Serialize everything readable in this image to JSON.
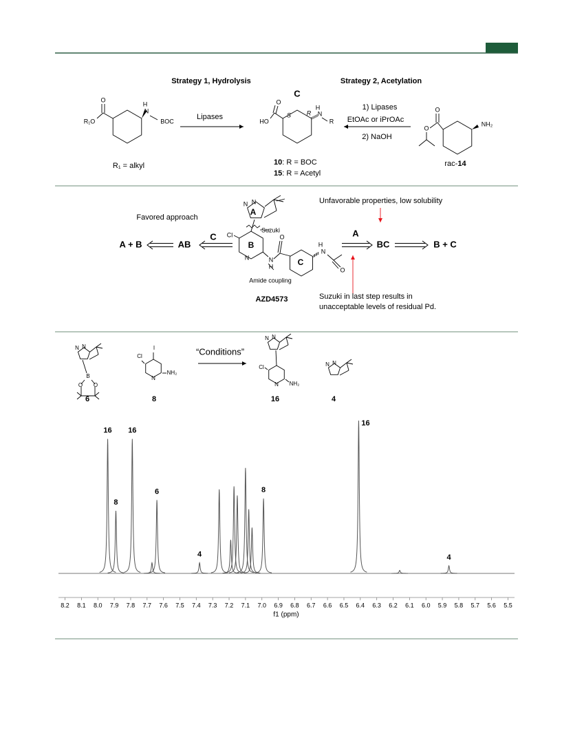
{
  "scheme1": {
    "headings": [
      "Strategy 1, Hydrolysis",
      "Strategy 2, Acetylation"
    ],
    "ring_label": "C",
    "left": {
      "atoms": [
        "O",
        "R₁O",
        "H",
        "N",
        "BOC"
      ],
      "caption": "R₁ = alkyl"
    },
    "arrow_left": "Lipases",
    "product": {
      "atoms": [
        "O",
        "HO",
        "S",
        "R",
        "H",
        "N",
        "R"
      ],
      "captions": [
        {
          "number": "10",
          "text": ": R = BOC"
        },
        {
          "number": "15",
          "text": ": R = Acetyl"
        }
      ]
    },
    "arrow_right": [
      "1) Lipases",
      "EtOAc or iPrOAc",
      "2) NaOH"
    ],
    "right": {
      "atoms": [
        "O",
        "O",
        "NH₂"
      ],
      "caption": {
        "prefix": "rac-",
        "number": "14"
      }
    }
  },
  "scheme2": {
    "note_left": "Favored approach",
    "left_path": [
      "A + B",
      "AB"
    ],
    "left_arrow": "C",
    "molecule": {
      "atoms": [
        "N",
        "N",
        "Cl",
        "N",
        "N",
        "H",
        "O",
        "H",
        "N",
        "O"
      ],
      "rings": [
        "A",
        "B",
        "C"
      ],
      "bond_labels": [
        "Suzuki",
        "Amide coupling"
      ],
      "name": "AZD4573"
    },
    "right_arrow": "A",
    "right_path": [
      "BC",
      "B + C"
    ],
    "note_top": "Unfavorable properties, low solubility",
    "note_bottom": [
      "Suzuki in last step results in",
      "unacceptable levels of residual Pd."
    ]
  },
  "scheme3": {
    "arrow": "“Conditions”",
    "compounds": [
      {
        "label": "6",
        "atoms": [
          "N",
          "N",
          "B",
          "O",
          "O"
        ]
      },
      {
        "label": "8",
        "atoms": [
          "Cl",
          "I",
          "N",
          "NH₂"
        ]
      },
      {
        "label": "16",
        "atoms": [
          "N",
          "N",
          "Cl",
          "N",
          "NH₂"
        ]
      },
      {
        "label": "4",
        "atoms": [
          "N",
          "N"
        ]
      }
    ]
  },
  "spectrum": {
    "x_label": "f1 (ppm)",
    "xlim": [
      8.24,
      5.46
    ],
    "xticks": [
      8.2,
      8.1,
      {
        "value": 8,
        "label": "8.0"
      },
      7.9,
      7.8,
      7.7,
      7.6,
      7.5,
      7.4,
      7.3,
      7.2,
      7.1,
      {
        "value": 7,
        "label": "7.0"
      },
      6.9,
      6.8,
      6.7,
      6.6,
      6.5,
      6.4,
      6.3,
      6.2,
      6.1,
      {
        "value": 6,
        "label": "6.0"
      },
      5.9,
      5.8,
      5.7,
      5.6,
      5.5
    ],
    "peaks": [
      {
        "ppm": 7.94,
        "height": 88,
        "label": "16"
      },
      {
        "ppm": 7.89,
        "height": 41,
        "label": "8"
      },
      {
        "ppm": 7.79,
        "height": 88,
        "label": "16"
      },
      {
        "ppm": 7.67,
        "height": 7
      },
      {
        "ppm": 7.64,
        "height": 48,
        "label": "6"
      },
      {
        "ppm": 7.38,
        "height": 7,
        "label": "4"
      },
      {
        "ppm": 7.26,
        "height": 55
      },
      {
        "ppm": 7.19,
        "height": 22
      },
      {
        "ppm": 7.17,
        "height": 57
      },
      {
        "ppm": 7.15,
        "height": 51
      },
      {
        "ppm": 7.1,
        "height": 69
      },
      {
        "ppm": 7.08,
        "height": 42
      },
      {
        "ppm": 7.06,
        "height": 30
      },
      {
        "ppm": 6.99,
        "height": 49,
        "label": "8"
      },
      {
        "ppm": 6.41,
        "height": 100,
        "label": "16"
      },
      {
        "ppm": 6.16,
        "height": 2
      },
      {
        "ppm": 5.86,
        "height": 5,
        "label": "4"
      }
    ]
  }
}
